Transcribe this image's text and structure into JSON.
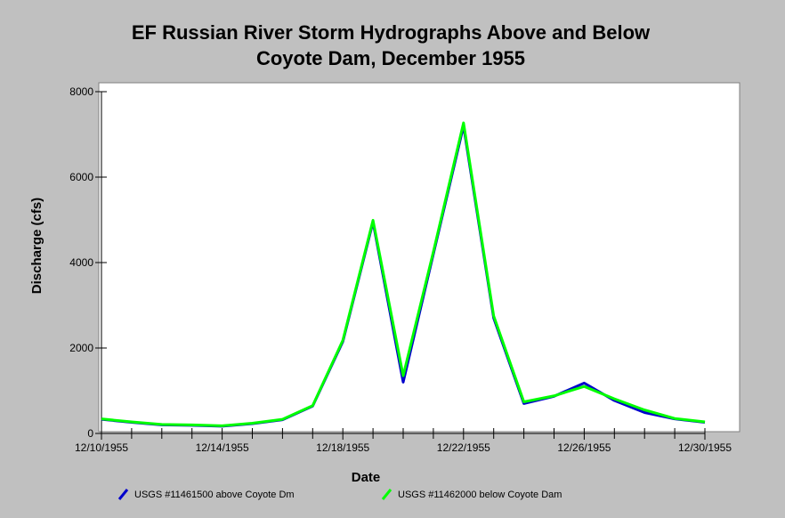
{
  "chart_data": {
    "type": "line",
    "title": "EF Russian River Storm Hydrographs Above and Below",
    "subtitle": "Coyote Dam, December 1955",
    "xlabel": "Date",
    "ylabel": "Discharge (cfs)",
    "xlim": [
      "1955-12-10",
      "1955-12-30"
    ],
    "ylim": [
      0,
      8000
    ],
    "yticks": [
      0,
      2000,
      4000,
      6000,
      8000
    ],
    "xtick_labels": [
      "12/10/1955",
      "12/14/1955",
      "12/18/1955",
      "12/22/1955",
      "12/26/1955",
      "12/30/1955"
    ],
    "x": [
      "1955-12-10",
      "1955-12-11",
      "1955-12-12",
      "1955-12-13",
      "1955-12-14",
      "1955-12-15",
      "1955-12-16",
      "1955-12-17",
      "1955-12-18",
      "1955-12-19",
      "1955-12-20",
      "1955-12-21",
      "1955-12-22",
      "1955-12-23",
      "1955-12-24",
      "1955-12-25",
      "1955-12-26",
      "1955-12-27",
      "1955-12-28",
      "1955-12-29",
      "1955-12-30"
    ],
    "series": [
      {
        "name": "USGS #11461500 above Coyote Dm",
        "color": "#0000cc",
        "values": [
          330,
          260,
          200,
          190,
          170,
          230,
          320,
          640,
          2150,
          4950,
          1200,
          4200,
          7200,
          2700,
          700,
          870,
          1180,
          770,
          490,
          340,
          260
        ]
      },
      {
        "name": "USGS #11462000 below Coyote Dam",
        "color": "#00ff00",
        "values": [
          340,
          270,
          210,
          200,
          180,
          240,
          330,
          650,
          2180,
          4990,
          1350,
          4250,
          7270,
          2750,
          740,
          880,
          1100,
          810,
          550,
          350,
          270
        ]
      }
    ],
    "grid": false,
    "legend": "bottom"
  }
}
